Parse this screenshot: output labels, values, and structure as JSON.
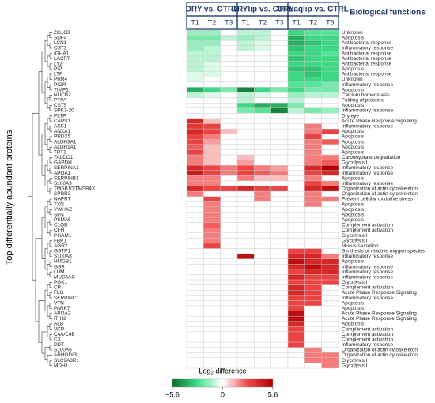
{
  "chart_data": {
    "type": "heatmap",
    "y_label": "Top differentially abundant proteins",
    "functions_title": "Biological functions",
    "groups": [
      "DRY vs. CTRL",
      "DRYlip vs. CTRL",
      "DRYaqlip vs. CTRL"
    ],
    "columns": [
      "T1",
      "T2",
      "T3",
      "T1",
      "T2",
      "T3",
      "T1",
      "T2",
      "T3"
    ],
    "rows": [
      "ZG16B",
      "SDF4",
      "LCN1",
      "CST3",
      "IGHA1",
      "LACRT",
      "LYZ",
      "PIP",
      "LTF",
      "PRR4",
      "PIGR",
      "TIMP1",
      "NUCB2",
      "PTPA",
      "CST5",
      "SPK3-20",
      "PLTP",
      "CAPS1",
      "ASS1",
      "ANXA1",
      "PRDX5",
      "ALDH3A1",
      "ALDH1A1",
      "TPT1",
      "TALDO1",
      "GAPDH",
      "SERPINA1",
      "APOA1",
      "SERPINB1",
      "S100A9",
      "TMSB10/TMSB4X",
      "SPRR3",
      "NAPRT",
      "TXN",
      "YWHAZ",
      "SFN",
      "PSMA5",
      "C1QB",
      "CFH",
      "PGAM1",
      "FBP1",
      "AGR2",
      "GSTP1",
      "S100A8",
      "HMGB1",
      "GSR",
      "LUM",
      "MUC5AC",
      "PGK1",
      "CP",
      "FLG",
      "SERPINC1",
      "VTN",
      "PARK7",
      "APOA2",
      "ITIH2",
      "ALB",
      "VCP",
      "C4A/C4B",
      "C3",
      "DDT",
      "S100A6",
      "ARHGDIB",
      "SLC9A3R1",
      "MDH1"
    ],
    "functions": [
      "Unknown",
      "Apoptosis",
      "Antibacterial response",
      "Inflammatory response",
      "Antibacterial response",
      "Antibacterial response",
      "Antibacterial response",
      "Apoptosis",
      "Antibacterial response",
      "Unknown",
      "Inflammatory response",
      "Apoptosis",
      "Calcium homeostasis",
      "Folding of proteins",
      "Apoptosis",
      "Inflammatory response",
      "Dry eye",
      "Acute Phase Response Signaling",
      "Inflammatory response",
      "Apoptosis",
      "Apoptosis",
      "Apoptosis",
      "Apoptosis",
      "Apoptosis",
      "Carbohydrate degradation",
      "Glycolysis I",
      "Inflammatory response",
      "Inflammatory response",
      "Apoptosis",
      "Inflammatory response",
      "Organization of actin cytoskeleton",
      "Organization of actin cytoskeleton",
      "Prevent cellular oxidative stress",
      "Apoptosis",
      "Apoptosis",
      "Apoptosis",
      "Apoptosis",
      "Complement activation",
      "Complement activation",
      "Glycolysis I",
      "Glycolysis I",
      "Mucus secretion",
      "Synthesis of reactive oxygen species",
      "Inflammatory response",
      "Apoptosis",
      "Inflammatory response",
      "Inflammatory response",
      "Inflammatory response",
      "Glycolysis I",
      "Complement activation",
      "Acute Phase Response Signaling",
      "Inflammatory response",
      "Apoptosis",
      "Apoptosis",
      "Acute Phase Response Signaling",
      "Acute Phase Response Signaling",
      "Apoptosis",
      "Complement activation",
      "Complement activation",
      "Complement activation",
      "Inflammatory response",
      "Organization of actin cytoskeleton",
      "Organization of actin cytoskeleton",
      "Glycolysis I",
      "Glycolysis I"
    ],
    "values": [
      [
        -1.5,
        -1.5,
        0,
        -1,
        -1,
        0,
        -3,
        -2.5,
        -2.5
      ],
      [
        -2,
        -2,
        -1,
        -1.5,
        -1,
        0,
        -4,
        -3,
        -3
      ],
      [
        -1.5,
        -1.5,
        0,
        -1,
        -0.5,
        0,
        -4,
        -3.5,
        -3
      ],
      [
        -1.5,
        -1,
        0,
        -1,
        -0.5,
        0,
        -3.5,
        -3,
        -3
      ],
      [
        -1,
        -1,
        0,
        0,
        0,
        0,
        -3,
        -3,
        -2.5
      ],
      [
        -1,
        -1,
        0,
        0,
        0,
        0,
        -3.5,
        -3,
        -3
      ],
      [
        -1,
        -0.5,
        0,
        0,
        0,
        0,
        -3,
        -3,
        -3
      ],
      [
        -1,
        -0.5,
        0,
        0,
        0,
        0,
        -3.5,
        -3.5,
        -3
      ],
      [
        -0.5,
        -0.5,
        0,
        0,
        0,
        0,
        -3,
        -3.5,
        -3
      ],
      [
        -0.5,
        0,
        0,
        0,
        0,
        0,
        -3,
        -3,
        -3
      ],
      [
        0,
        0,
        0,
        0,
        0,
        0,
        -2.5,
        -2.5,
        -2
      ],
      [
        -4,
        -3,
        -2,
        -5,
        -3,
        -2,
        -3,
        -2,
        -2
      ],
      [
        -1,
        -0.5,
        0,
        -1,
        -0.5,
        0,
        -1.5,
        -1,
        -1
      ],
      [
        0,
        0,
        0,
        -1,
        0,
        0,
        -1,
        0,
        0
      ],
      [
        0,
        0,
        0,
        -3,
        -4,
        -4,
        -2,
        0,
        0
      ],
      [
        0,
        0,
        0,
        -2,
        -2.5,
        -5,
        -1,
        -2,
        -1.5
      ],
      [
        0,
        0,
        0,
        0,
        0,
        0,
        0,
        0,
        0
      ],
      [
        4,
        1,
        0,
        0,
        0,
        0,
        0,
        0,
        0
      ],
      [
        3.5,
        3,
        0,
        0,
        0,
        0,
        0,
        2,
        0
      ],
      [
        4,
        3,
        1,
        0,
        0,
        0,
        0,
        2,
        3
      ],
      [
        3,
        2,
        0,
        0,
        0,
        0,
        0,
        3,
        0
      ],
      [
        3,
        1.5,
        0,
        0,
        0,
        0,
        0,
        2,
        2.5
      ],
      [
        2.5,
        1,
        0,
        0,
        0,
        0,
        0,
        2,
        0
      ],
      [
        3,
        1,
        0,
        0,
        0,
        0,
        0,
        2,
        0
      ],
      [
        2,
        1,
        0,
        1,
        0,
        0,
        0,
        2,
        2
      ],
      [
        2,
        1,
        0,
        1.5,
        0,
        0,
        0,
        2,
        2.5
      ],
      [
        4,
        3,
        2,
        3,
        2,
        1.5,
        0,
        4,
        5.6
      ],
      [
        4.5,
        3,
        2,
        3,
        2.5,
        2,
        0,
        3,
        4
      ],
      [
        2,
        2,
        0,
        2,
        1,
        1,
        0,
        2,
        0
      ],
      [
        2,
        2,
        0,
        0,
        0,
        0,
        0,
        3,
        2
      ],
      [
        4,
        3,
        3,
        4,
        3,
        3,
        0,
        4,
        5
      ],
      [
        2,
        0,
        0,
        0,
        2,
        0,
        0,
        2,
        0
      ],
      [
        0,
        3,
        0,
        0,
        2,
        0,
        0,
        2,
        2
      ],
      [
        0,
        2,
        0,
        0,
        0,
        0,
        0,
        2,
        0
      ],
      [
        0,
        2,
        0,
        0,
        0,
        0,
        0,
        0,
        0
      ],
      [
        0,
        2,
        0,
        0,
        0,
        0,
        0,
        0,
        0
      ],
      [
        0,
        2,
        0,
        0,
        0,
        0,
        0,
        0,
        0
      ],
      [
        0,
        2.5,
        0,
        0,
        0,
        0,
        0,
        0,
        0
      ],
      [
        0,
        2,
        0,
        0,
        0,
        0,
        0,
        0,
        0
      ],
      [
        0,
        2,
        0,
        0,
        0,
        0,
        0,
        0,
        0
      ],
      [
        0,
        2,
        0,
        0,
        0,
        0,
        0,
        0,
        0
      ],
      [
        0,
        3,
        0,
        0,
        0,
        0,
        0,
        0,
        0
      ],
      [
        0,
        0,
        0,
        0,
        0,
        0,
        3,
        3,
        0
      ],
      [
        0,
        0,
        0,
        5,
        0,
        0,
        4,
        4,
        2
      ],
      [
        0,
        0,
        0,
        0,
        0,
        0,
        5,
        4,
        4
      ],
      [
        0,
        0,
        0,
        0,
        0,
        0,
        4,
        5,
        4
      ],
      [
        0,
        0,
        0,
        0,
        0,
        0,
        3,
        4,
        4
      ],
      [
        0,
        0,
        0,
        0,
        0,
        0,
        4,
        3,
        3
      ],
      [
        0,
        0,
        0,
        0,
        0,
        0,
        3,
        3,
        3
      ],
      [
        0,
        0,
        0,
        0,
        0,
        0,
        4,
        3,
        0
      ],
      [
        0,
        0,
        0,
        0,
        0,
        0,
        4,
        3,
        0
      ],
      [
        0,
        0,
        0,
        0,
        0,
        0,
        3,
        3,
        0
      ],
      [
        0,
        0,
        0,
        0,
        0,
        0,
        3,
        3,
        0
      ],
      [
        0,
        0,
        0,
        0,
        0,
        0,
        3,
        0,
        0
      ],
      [
        0,
        0,
        0,
        0,
        0,
        0,
        5,
        0,
        0
      ],
      [
        0,
        0,
        0,
        0,
        0,
        0,
        5,
        0,
        0
      ],
      [
        0,
        0,
        0,
        0,
        0,
        0,
        4,
        0,
        0
      ],
      [
        0,
        0,
        0,
        0,
        0,
        0,
        3,
        0,
        0
      ],
      [
        0,
        0,
        0,
        0,
        0,
        0,
        3,
        0,
        0
      ],
      [
        0,
        0,
        0,
        0,
        0,
        0,
        3,
        0,
        0
      ],
      [
        0,
        0,
        0,
        0,
        0,
        0,
        3,
        0,
        0
      ],
      [
        0,
        0,
        0,
        0,
        0,
        0,
        0,
        2,
        0
      ],
      [
        0,
        0,
        0,
        0,
        0,
        0,
        0,
        2,
        2
      ],
      [
        0,
        0,
        0,
        0,
        0,
        0,
        0,
        2,
        2
      ],
      [
        0,
        0,
        0,
        0,
        0,
        0,
        0,
        0,
        2
      ]
    ],
    "colorbar_title": "Log₂ difference",
    "clim": [
      -5.6,
      5.6
    ],
    "cticks": [
      {
        "value": -5.6,
        "label": "−5.6"
      },
      0,
      5.6
    ],
    "colorscale": [
      "#0a6b2a",
      "#40e08a",
      "#ffffff",
      "#f04848",
      "#b00000"
    ]
  }
}
